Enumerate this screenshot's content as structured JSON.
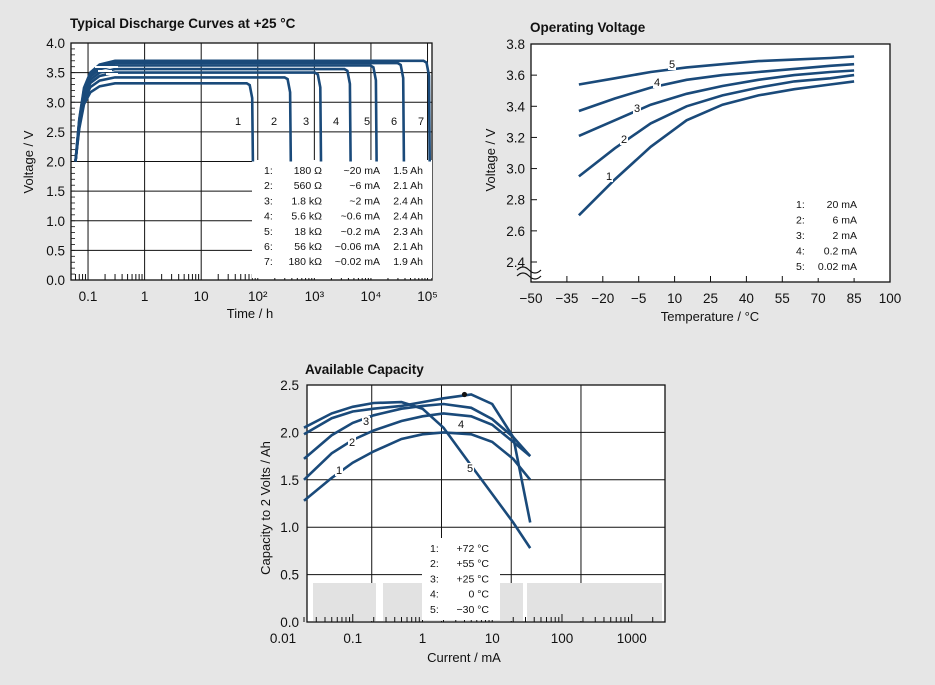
{
  "chart_data": [
    {
      "type": "line",
      "title": "Typical Discharge Curves at +25 °C",
      "xlabel": "Time / h",
      "ylabel": "Voltage / V",
      "xscale": "log",
      "xlim": [
        0.05,
        120000
      ],
      "ylim": [
        0,
        4
      ],
      "xticks": [
        "0.1",
        "1",
        "10",
        "10²",
        "10³",
        "10⁴",
        "10⁵"
      ],
      "yticks": [
        "0.0",
        "0.5",
        "1.0",
        "1.5",
        "2.0",
        "2.5",
        "3.0",
        "3.5",
        "4.0"
      ],
      "grid": true,
      "legend_placement": "bottom-right",
      "series": [
        {
          "name": "1",
          "load": "180 Ω",
          "current": "~20 mA",
          "capacity": "1.5 Ah",
          "plateau_v": 3.32,
          "end_h": 75
        },
        {
          "name": "2",
          "load": "560 Ω",
          "current": "~6 mA",
          "capacity": "2.1 Ah",
          "plateau_v": 3.42,
          "end_h": 350
        },
        {
          "name": "3",
          "load": "1.8 kΩ",
          "current": "~2 mA",
          "capacity": "2.4 Ah",
          "plateau_v": 3.5,
          "end_h": 1200
        },
        {
          "name": "4",
          "load": "5.6 kΩ",
          "current": "~0.6 mA",
          "capacity": "2.4 Ah",
          "plateau_v": 3.56,
          "end_h": 4000
        },
        {
          "name": "5",
          "load": "18 kΩ",
          "current": "~0.2 mA",
          "capacity": "2.3 Ah",
          "plateau_v": 3.62,
          "end_h": 11500
        },
        {
          "name": "6",
          "load": "56 kΩ",
          "current": "~0.06 mA",
          "capacity": "2.1 Ah",
          "plateau_v": 3.66,
          "end_h": 35000
        },
        {
          "name": "7",
          "load": "180 kΩ",
          "current": "~0.02 mA",
          "capacity": "1.9 Ah",
          "plateau_v": 3.7,
          "end_h": 100000
        }
      ]
    },
    {
      "type": "line",
      "title": "Operating Voltage",
      "xlabel": "Temperature / °C",
      "ylabel": "Voltage / V",
      "xlim": [
        -50,
        100
      ],
      "ylim": [
        2.4,
        3.8
      ],
      "xticks": [
        "−50",
        "−35",
        "−20",
        "−5",
        "10",
        "25",
        "40",
        "55",
        "70",
        "85",
        "100"
      ],
      "yticks": [
        "2.4",
        "2.6",
        "2.8",
        "3.0",
        "3.2",
        "3.4",
        "3.6",
        "3.8"
      ],
      "grid": false,
      "legend_placement": "bottom-right",
      "x": [
        -30,
        -15,
        0,
        15,
        30,
        45,
        60,
        75,
        85
      ],
      "series": [
        {
          "name": "1",
          "current": "20 mA",
          "values": [
            2.7,
            2.93,
            3.14,
            3.31,
            3.41,
            3.47,
            3.51,
            3.54,
            3.56
          ]
        },
        {
          "name": "2",
          "current": "6 mA",
          "values": [
            2.95,
            3.13,
            3.29,
            3.4,
            3.47,
            3.52,
            3.56,
            3.58,
            3.6
          ]
        },
        {
          "name": "3",
          "current": "2 mA",
          "values": [
            3.21,
            3.31,
            3.41,
            3.48,
            3.53,
            3.57,
            3.6,
            3.62,
            3.63
          ]
        },
        {
          "name": "4",
          "current": "0.2 mA",
          "values": [
            3.37,
            3.45,
            3.52,
            3.57,
            3.6,
            3.62,
            3.64,
            3.66,
            3.67
          ]
        },
        {
          "name": "5",
          "current": "0.02 mA",
          "values": [
            3.54,
            3.58,
            3.62,
            3.65,
            3.67,
            3.69,
            3.7,
            3.71,
            3.72
          ]
        }
      ]
    },
    {
      "type": "line",
      "title": "Available Capacity",
      "xlabel": "Current / mA",
      "ylabel": "Capacity to 2 Volts / Ah",
      "xscale": "log",
      "xlim": [
        0.01,
        3000
      ],
      "ylim": [
        0,
        2.5
      ],
      "xticks": [
        "0.01",
        "0.1",
        "1",
        "10",
        "100",
        "1000"
      ],
      "yticks": [
        "0.0",
        "0.5",
        "1.0",
        "1.5",
        "2.0",
        "2.5"
      ],
      "grid": true,
      "legend_placement": "bottom-center",
      "x": [
        0.02,
        0.05,
        0.1,
        0.2,
        0.5,
        1,
        2,
        5,
        10,
        20,
        35
      ],
      "series": [
        {
          "name": "1",
          "temp": "+72 °C",
          "values": [
            1.28,
            1.52,
            1.68,
            1.8,
            1.93,
            1.98,
            2.0,
            1.98,
            1.9,
            1.72,
            1.5
          ]
        },
        {
          "name": "2",
          "temp": "+55 °C",
          "values": [
            1.5,
            1.78,
            1.92,
            2.02,
            2.12,
            2.17,
            2.2,
            2.17,
            2.08,
            1.9,
            1.75
          ]
        },
        {
          "name": "3",
          "temp": "+25 °C",
          "values": [
            1.72,
            1.97,
            2.1,
            2.18,
            2.25,
            2.28,
            2.3,
            2.26,
            2.14,
            1.95,
            1.75
          ]
        },
        {
          "name": "4",
          "temp": "0 °C",
          "values": [
            1.98,
            2.15,
            2.22,
            2.25,
            2.28,
            2.32,
            2.36,
            2.4,
            2.3,
            1.95,
            1.05
          ]
        },
        {
          "name": "5",
          "temp": "−30 °C",
          "values": [
            2.05,
            2.2,
            2.27,
            2.31,
            2.32,
            2.25,
            2.05,
            1.65,
            1.35,
            1.05,
            0.78
          ]
        }
      ]
    }
  ]
}
